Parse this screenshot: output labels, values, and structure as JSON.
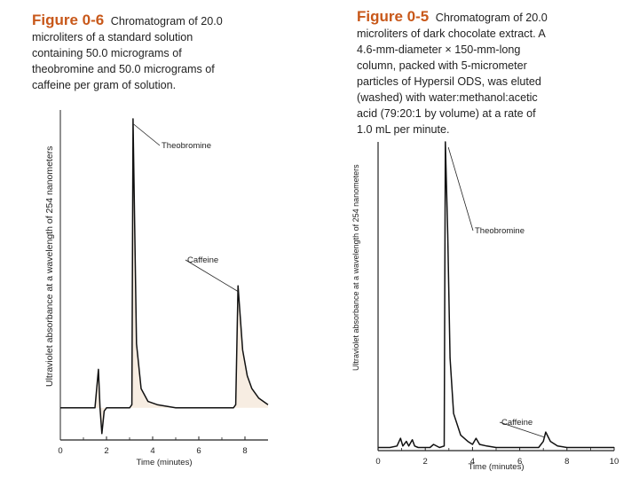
{
  "chart_data": [
    {
      "type": "line",
      "figure_label": "Figure 0-6",
      "caption": "Chromatogram of 20.0 microliters of a standard solution containing 50.0 micrograms of theobromine and 50.0 micrograms of caffeine per gram of solution.",
      "caption_lines": [
        "Chromatogram of 20.0",
        "microliters of a standard solution",
        "containing 50.0 micrograms of",
        "theobromine and 50.0 micrograms of",
        "caffeine per gram of solution."
      ],
      "xlabel": "Time (minutes)",
      "ylabel": "Ultraviolet absorbance at a wavelength of 254 nanometers",
      "xlim": [
        0,
        9
      ],
      "x_ticks": [
        0,
        2,
        4,
        6,
        8
      ],
      "x_tick_labels": [
        "0",
        "2",
        "4",
        "6",
        "8"
      ],
      "ylim": [
        0,
        100
      ],
      "baseline": 10,
      "grid": false,
      "annotations": [
        {
          "text": "Theobromine",
          "x": 3.1,
          "y": 100
        },
        {
          "text": "Caffeine",
          "x": 7.6,
          "y": 48
        }
      ],
      "series": [
        {
          "values": [
            [
              0.0,
              10
            ],
            [
              0.5,
              10
            ],
            [
              1.0,
              10
            ],
            [
              1.5,
              10
            ],
            [
              1.65,
              22
            ],
            [
              1.72,
              10
            ],
            [
              1.8,
              2
            ],
            [
              1.9,
              9
            ],
            [
              2.0,
              10
            ],
            [
              2.5,
              10
            ],
            [
              3.0,
              10
            ],
            [
              3.1,
              11
            ],
            [
              3.15,
              100
            ],
            [
              3.3,
              30
            ],
            [
              3.5,
              16
            ],
            [
              3.8,
              12
            ],
            [
              4.2,
              11
            ],
            [
              5.0,
              10
            ],
            [
              6.0,
              10
            ],
            [
              7.0,
              10
            ],
            [
              7.5,
              10
            ],
            [
              7.6,
              11
            ],
            [
              7.7,
              48
            ],
            [
              7.9,
              28
            ],
            [
              8.1,
              20
            ],
            [
              8.3,
              16
            ],
            [
              8.6,
              13
            ],
            [
              9.0,
              11
            ]
          ]
        }
      ]
    },
    {
      "type": "line",
      "figure_label": "Figure 0-5",
      "caption": "Chromatogram of 20.0 microliters of dark chocolate extract. A 4.6-mm-diameter × 150-mm-long column, packed with 5-micrometer particles of Hypersil ODS, was eluted (washed) with water:methanol:acetic acid (79:20:1 by volume) at a rate of 1.0 mL per minute.",
      "caption_lines": [
        "Chromatogram of 20.0",
        "microliters of dark chocolate extract. A",
        "4.6-mm-diameter × 150-mm-long",
        "column, packed with 5-micrometer",
        "particles of Hypersil ODS, was eluted",
        "(washed) with water:methanol:acetic",
        "acid (79:20:1 by volume) at a rate of",
        "1.0 mL per minute."
      ],
      "xlabel": "Time (minutes)",
      "ylabel": "Ultraviolet absorbance at a wavelength of 254 nanometers",
      "xlim": [
        0,
        10
      ],
      "x_ticks": [
        0,
        2,
        4,
        6,
        8,
        10
      ],
      "x_tick_labels": [
        "0",
        "2",
        "4",
        "6",
        "8",
        "10"
      ],
      "ylim": [
        0,
        100
      ],
      "grid": false,
      "annotations": [
        {
          "text": "Theobromine",
          "x": 2.9,
          "y": 100
        },
        {
          "text": "Caffeine",
          "x": 7.0,
          "y": 6
        }
      ],
      "series": [
        {
          "values": [
            [
              0.0,
              1
            ],
            [
              0.5,
              1
            ],
            [
              0.8,
              1.5
            ],
            [
              0.95,
              4
            ],
            [
              1.05,
              1.5
            ],
            [
              1.2,
              3
            ],
            [
              1.3,
              1.5
            ],
            [
              1.45,
              3.5
            ],
            [
              1.55,
              1.5
            ],
            [
              1.7,
              1
            ],
            [
              2.0,
              1
            ],
            [
              2.2,
              1
            ],
            [
              2.35,
              2
            ],
            [
              2.6,
              1
            ],
            [
              2.8,
              1.5
            ],
            [
              2.85,
              100
            ],
            [
              2.95,
              70
            ],
            [
              3.05,
              30
            ],
            [
              3.2,
              12
            ],
            [
              3.5,
              5
            ],
            [
              3.8,
              3
            ],
            [
              4.0,
              2
            ],
            [
              4.15,
              4
            ],
            [
              4.3,
              2
            ],
            [
              4.6,
              1.5
            ],
            [
              5.0,
              1
            ],
            [
              6.0,
              1
            ],
            [
              6.8,
              1
            ],
            [
              7.0,
              3
            ],
            [
              7.1,
              6
            ],
            [
              7.3,
              3
            ],
            [
              7.6,
              1.5
            ],
            [
              8.0,
              1
            ],
            [
              9.0,
              1
            ],
            [
              10.0,
              1
            ]
          ]
        }
      ]
    }
  ]
}
